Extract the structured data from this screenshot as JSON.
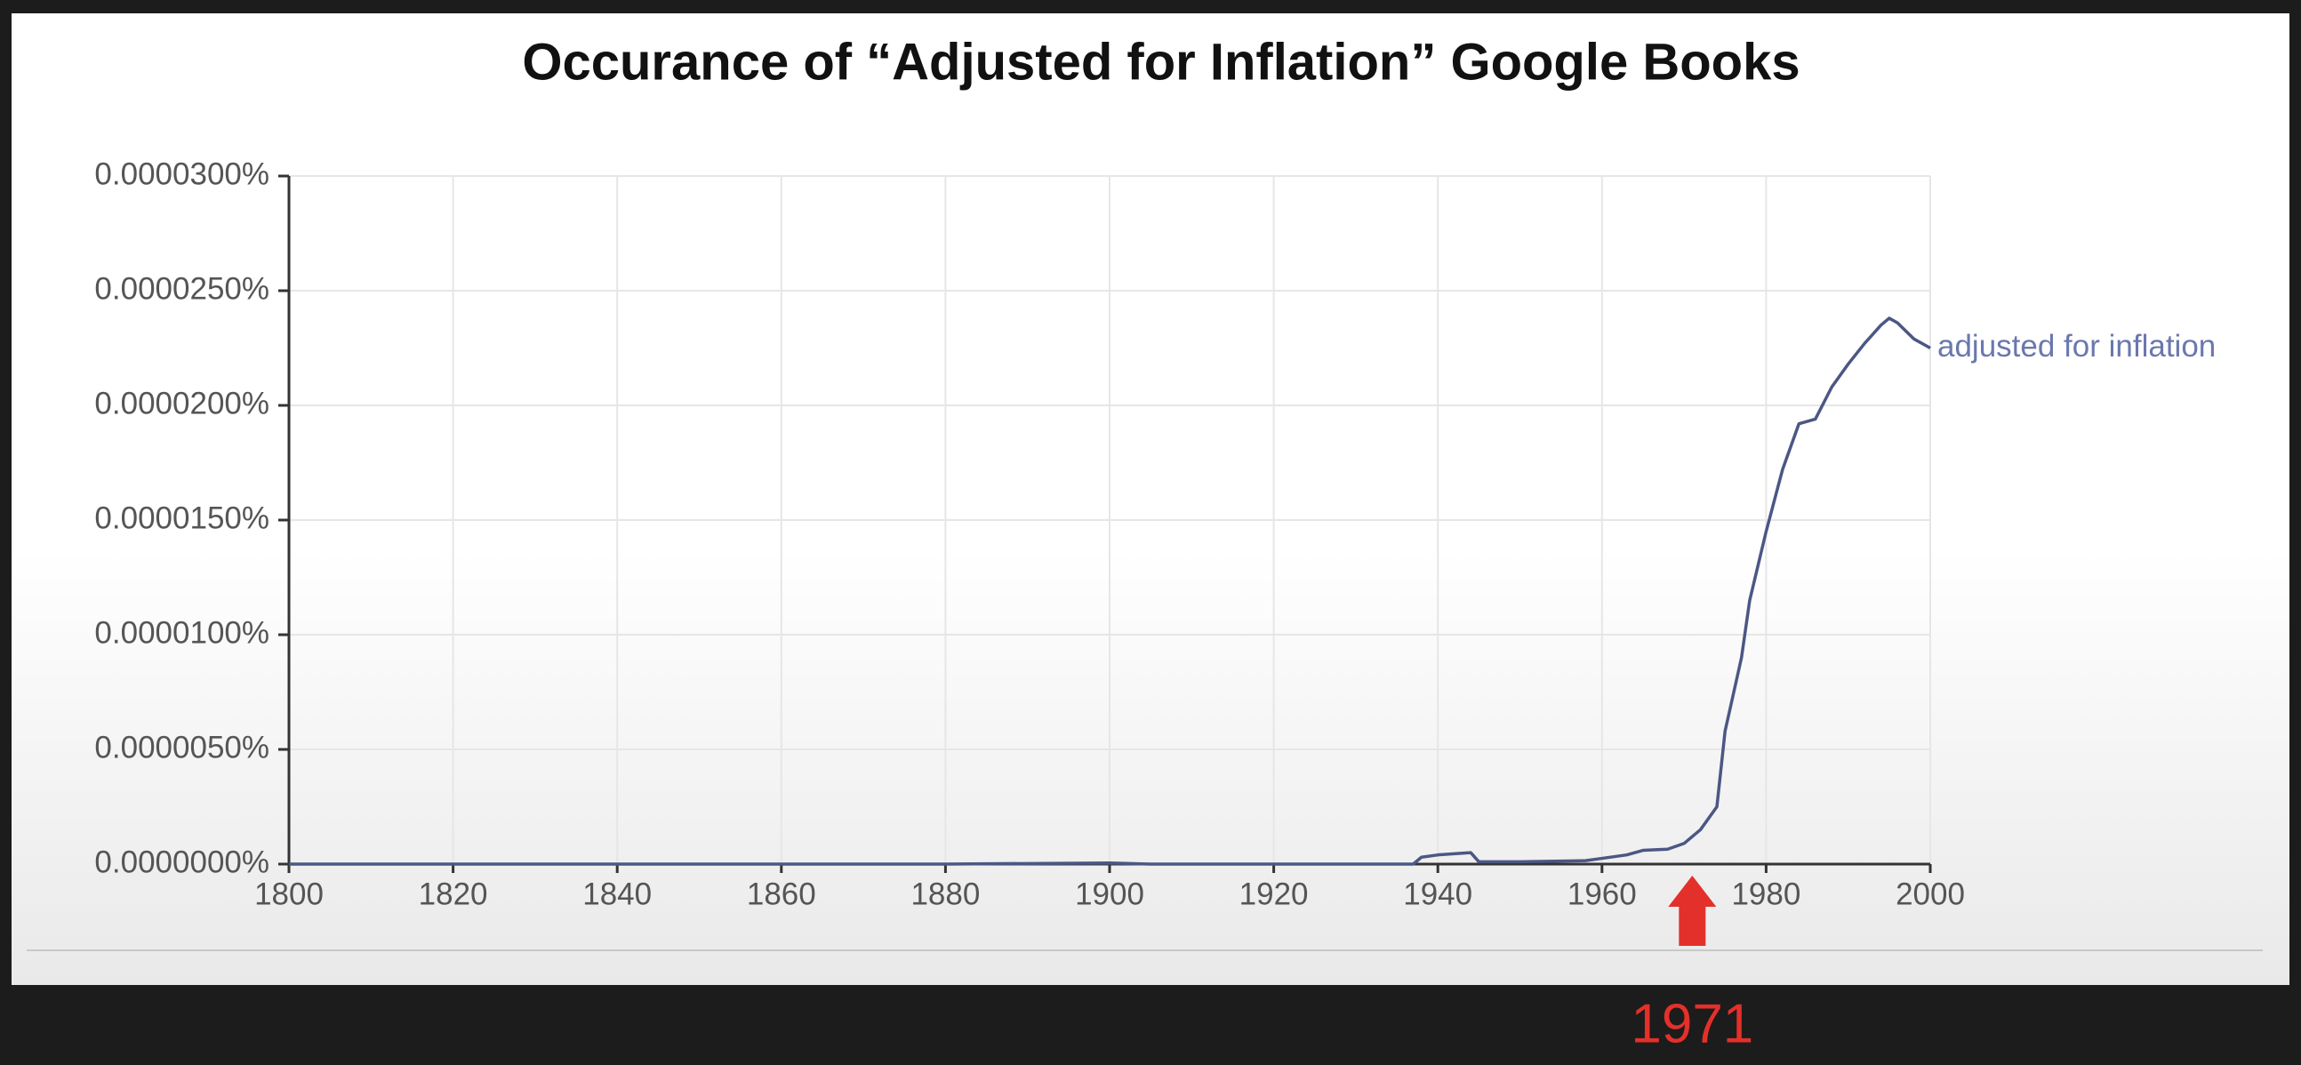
{
  "chart_data": {
    "type": "line",
    "title": "Occurance of “Adjusted for Inflation” Google Books",
    "x": [
      1800,
      1880,
      1900,
      1905,
      1937,
      1938,
      1940,
      1944,
      1945,
      1950,
      1958,
      1960,
      1963,
      1965,
      1968,
      1970,
      1972,
      1974,
      1975,
      1977,
      1978,
      1980,
      1982,
      1984,
      1986,
      1988,
      1990,
      1992,
      1994,
      1995,
      1996,
      1998,
      2000
    ],
    "series": [
      {
        "name": "adjusted for inflation",
        "color": "#4b5784",
        "values": [
          0,
          0,
          5e-08,
          0,
          0,
          3e-07,
          4e-07,
          5e-07,
          1e-07,
          1e-07,
          1.5e-07,
          2.5e-07,
          4e-07,
          6e-07,
          6.5e-07,
          9e-07,
          1.5e-06,
          2.5e-06,
          5.8e-06,
          9e-06,
          1.15e-05,
          1.45e-05,
          1.72e-05,
          1.92e-05,
          1.94e-05,
          2.08e-05,
          2.18e-05,
          2.27e-05,
          2.35e-05,
          2.38e-05,
          2.36e-05,
          2.29e-05,
          2.25e-05
        ]
      }
    ],
    "xlim": [
      1800,
      2000
    ],
    "xticks": [
      1800,
      1820,
      1840,
      1860,
      1880,
      1900,
      1920,
      1940,
      1960,
      1980,
      2000
    ],
    "ylim": [
      0,
      3e-05
    ],
    "yticks": [
      {
        "value": 0,
        "label": "0.0000000%"
      },
      {
        "value": 5e-06,
        "label": "0.0000050%"
      },
      {
        "value": 1e-05,
        "label": "0.0000100%"
      },
      {
        "value": 1.5e-05,
        "label": "0.0000150%"
      },
      {
        "value": 2e-05,
        "label": "0.0000200%"
      },
      {
        "value": 2.5e-05,
        "label": "0.0000250%"
      },
      {
        "value": 3e-05,
        "label": "0.0000300%"
      }
    ],
    "grid": true,
    "annotation": {
      "x": 1971,
      "color": "#e4302a"
    }
  }
}
